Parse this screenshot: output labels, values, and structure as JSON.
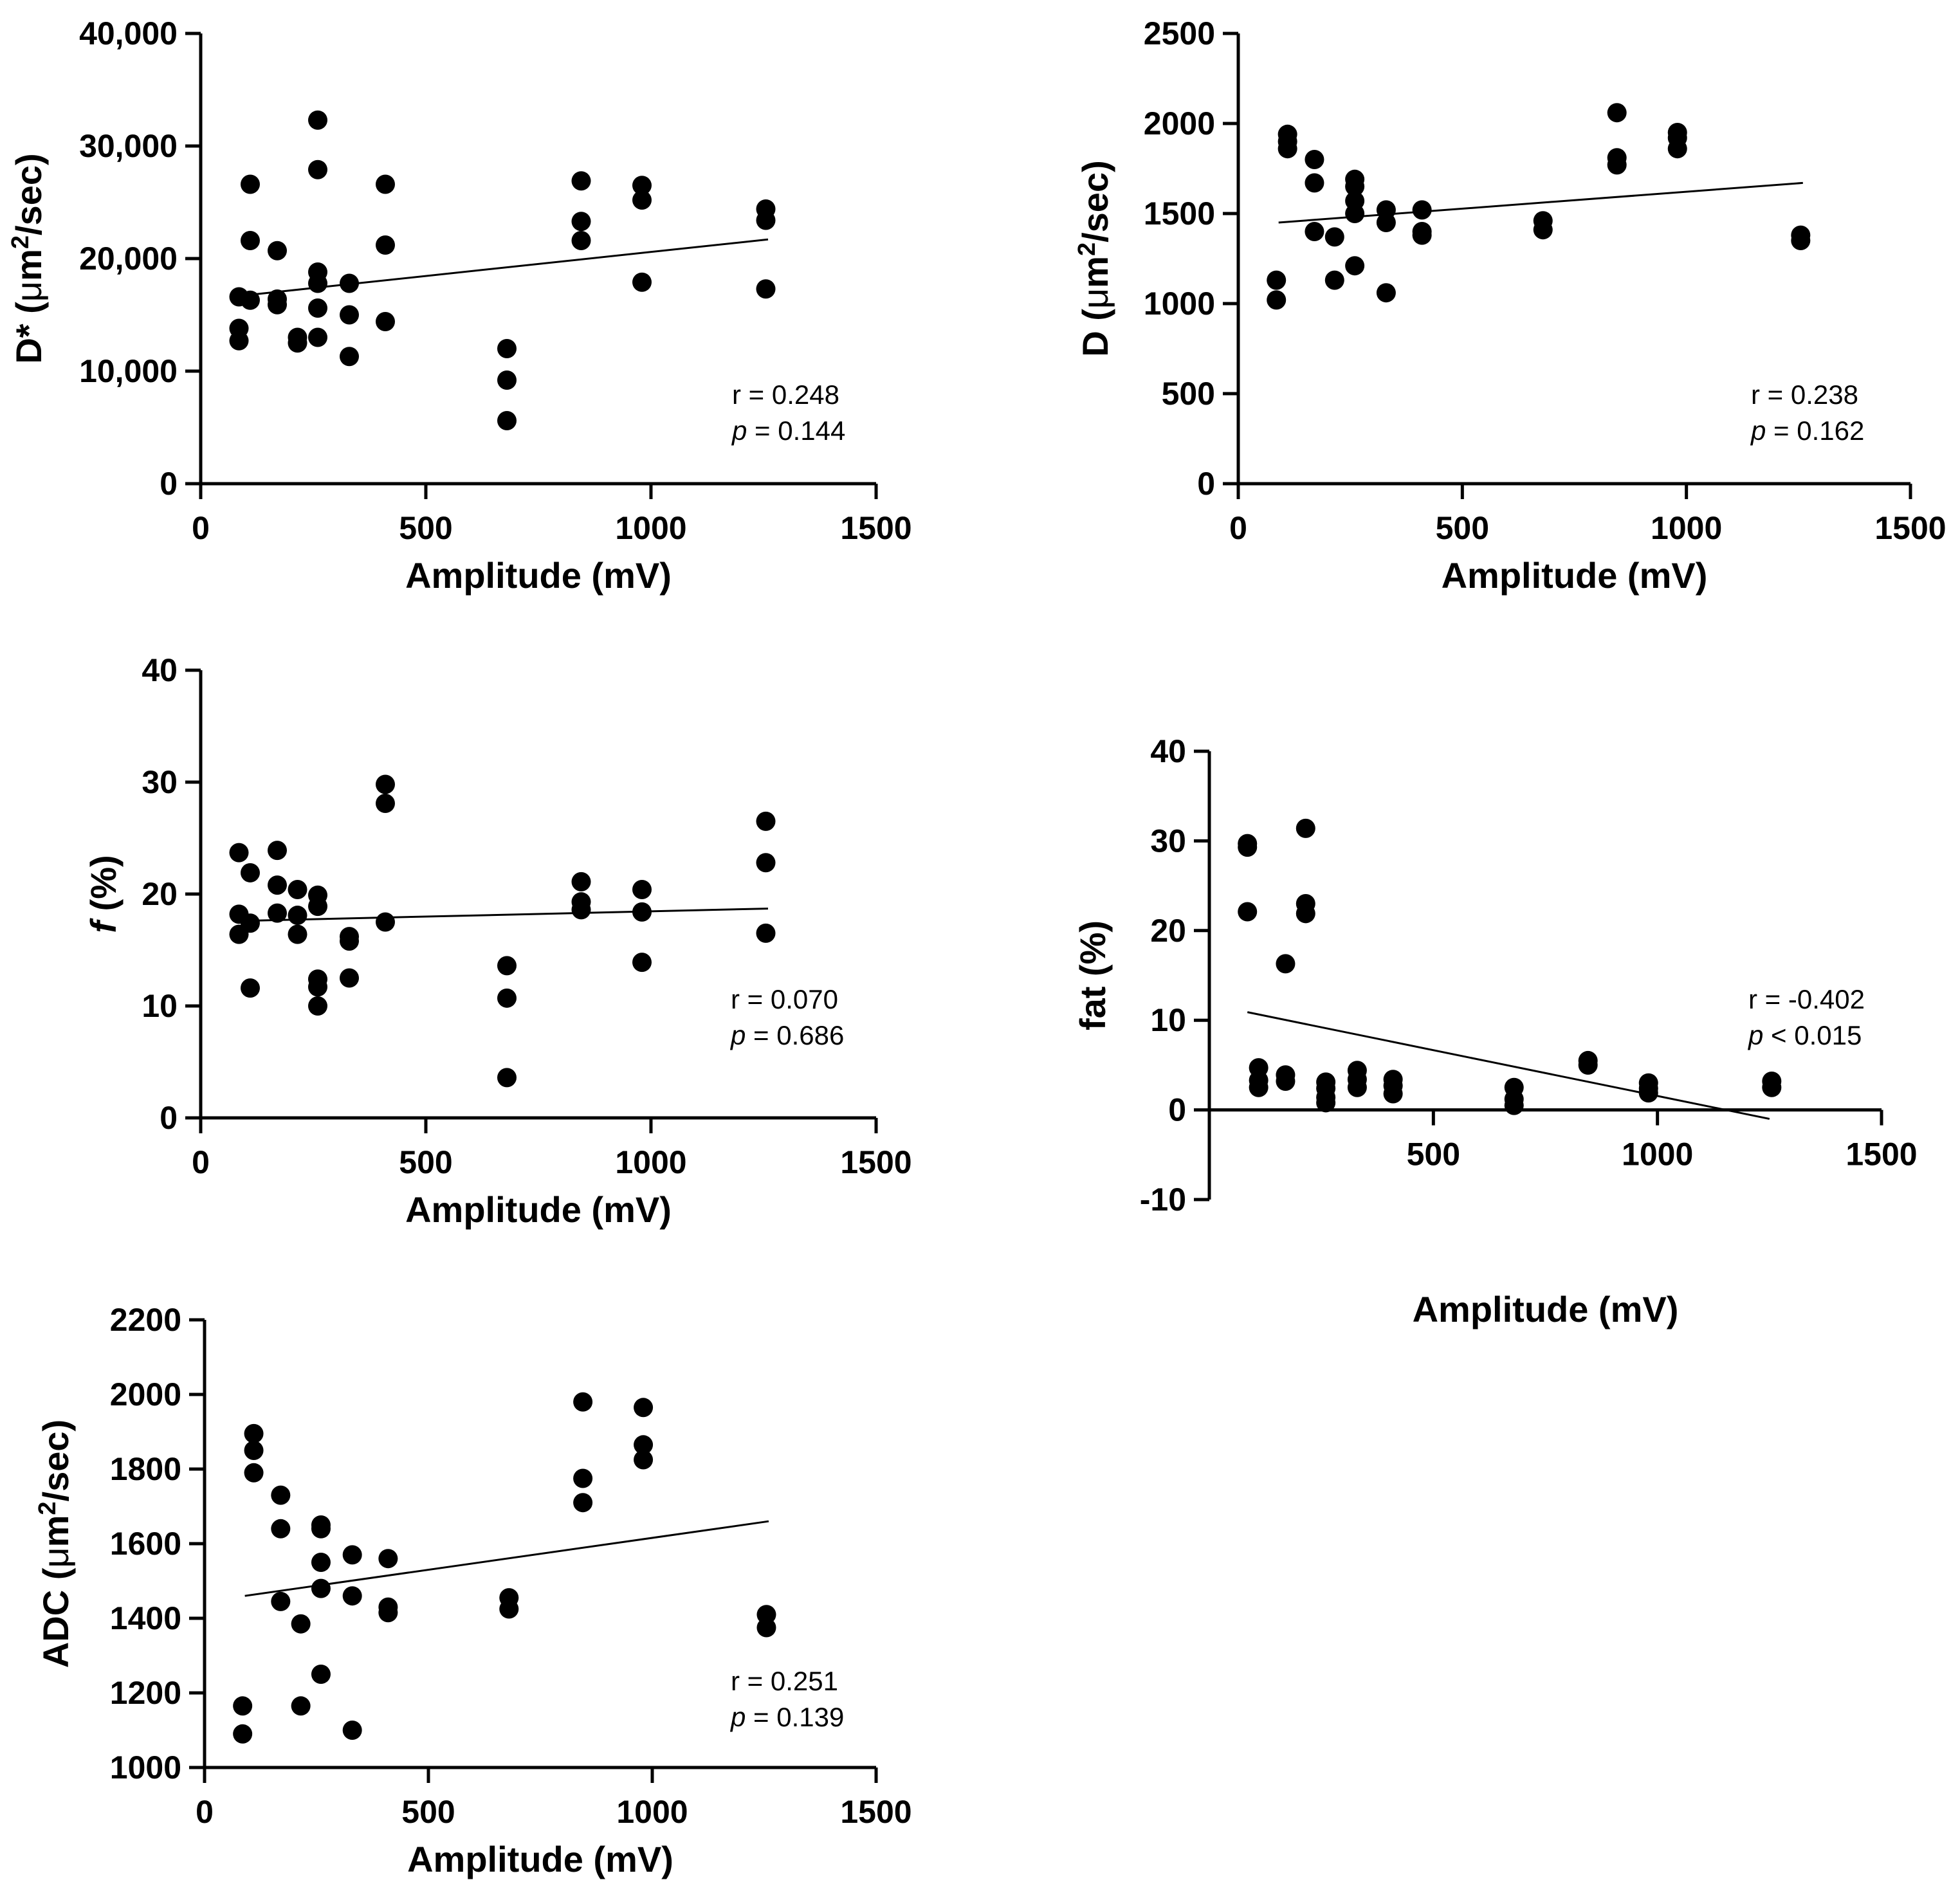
{
  "colors": {
    "ink": "#000000",
    "background": "#ffffff"
  },
  "chart_data": [
    {
      "id": "dstar",
      "type": "scatter",
      "title": "",
      "xlabel": "Amplitude (mV)",
      "ylabel_prefix": "D* (",
      "ylabel_mu": "μ",
      "ylabel_unit": "m",
      "ylabel_sup": "2",
      "ylabel_suffix": "/sec)",
      "xlim": [
        0,
        1500
      ],
      "ylim": [
        0,
        40000
      ],
      "xticks": [
        0,
        500,
        1000,
        1500
      ],
      "xtick_labels": [
        "0",
        "500",
        "1000",
        "1500"
      ],
      "yticks": [
        0,
        10000,
        20000,
        30000,
        40000
      ],
      "ytick_labels": [
        "0",
        "10,000",
        "20,000",
        "30,000",
        "40,000"
      ],
      "stats": {
        "r_text": "r = 0.248",
        "p_symbol": "p",
        "p_text": " = 0.144"
      },
      "fit": {
        "x": [
          90,
          1260
        ],
        "y": [
          16700,
          21700
        ]
      },
      "points": [
        [
          85,
          16600
        ],
        [
          85,
          13800
        ],
        [
          85,
          12700
        ],
        [
          110,
          26600
        ],
        [
          110,
          21600
        ],
        [
          110,
          16300
        ],
        [
          170,
          20700
        ],
        [
          170,
          16400
        ],
        [
          170,
          15900
        ],
        [
          215,
          13000
        ],
        [
          215,
          12500
        ],
        [
          260,
          32300
        ],
        [
          260,
          27900
        ],
        [
          260,
          18800
        ],
        [
          260,
          17800
        ],
        [
          260,
          15600
        ],
        [
          260,
          13000
        ],
        [
          330,
          17800
        ],
        [
          330,
          15000
        ],
        [
          330,
          11300
        ],
        [
          410,
          26600
        ],
        [
          410,
          21200
        ],
        [
          410,
          14400
        ],
        [
          680,
          12000
        ],
        [
          680,
          9200
        ],
        [
          680,
          5600
        ],
        [
          845,
          26900
        ],
        [
          845,
          23300
        ],
        [
          845,
          21600
        ],
        [
          980,
          26500
        ],
        [
          980,
          25200
        ],
        [
          980,
          17900
        ],
        [
          1255,
          24400
        ],
        [
          1255,
          23400
        ],
        [
          1255,
          17300
        ]
      ]
    },
    {
      "id": "d",
      "type": "scatter",
      "title": "",
      "xlabel": "Amplitude (mV)",
      "ylabel_prefix": "D (",
      "ylabel_mu": "μ",
      "ylabel_unit": "m",
      "ylabel_sup": "2",
      "ylabel_suffix": "/sec)",
      "xlim": [
        0,
        1500
      ],
      "ylim": [
        0,
        2500
      ],
      "xticks": [
        0,
        500,
        1000,
        1500
      ],
      "xtick_labels": [
        "0",
        "500",
        "1000",
        "1500"
      ],
      "yticks": [
        0,
        500,
        1000,
        1500,
        2000,
        2500
      ],
      "ytick_labels": [
        "0",
        "500",
        "1000",
        "1500",
        "2000",
        "2500"
      ],
      "stats": {
        "r_text": "r = 0.238",
        "p_symbol": "p",
        "p_text": " = 0.162"
      },
      "fit": {
        "x": [
          90,
          1260
        ],
        "y": [
          1450,
          1670
        ]
      },
      "points": [
        [
          85,
          1130
        ],
        [
          85,
          1020
        ],
        [
          110,
          1940
        ],
        [
          110,
          1900
        ],
        [
          110,
          1860
        ],
        [
          170,
          1800
        ],
        [
          170,
          1670
        ],
        [
          170,
          1400
        ],
        [
          215,
          1370
        ],
        [
          215,
          1130
        ],
        [
          260,
          1690
        ],
        [
          260,
          1650
        ],
        [
          260,
          1570
        ],
        [
          260,
          1500
        ],
        [
          260,
          1210
        ],
        [
          330,
          1520
        ],
        [
          330,
          1450
        ],
        [
          330,
          1060
        ],
        [
          410,
          1520
        ],
        [
          410,
          1400
        ],
        [
          410,
          1380
        ],
        [
          680,
          1460
        ],
        [
          680,
          1410
        ],
        [
          845,
          2060
        ],
        [
          845,
          1810
        ],
        [
          845,
          1770
        ],
        [
          980,
          1950
        ],
        [
          980,
          1920
        ],
        [
          980,
          1860
        ],
        [
          1255,
          1380
        ],
        [
          1255,
          1350
        ]
      ]
    },
    {
      "id": "f",
      "type": "scatter",
      "title": "",
      "xlabel": "Amplitude (mV)",
      "ylabel_italic": "f",
      "ylabel_suffix": " (%)",
      "xlim": [
        0,
        1500
      ],
      "ylim": [
        0,
        40
      ],
      "xticks": [
        0,
        500,
        1000,
        1500
      ],
      "xtick_labels": [
        "0",
        "500",
        "1000",
        "1500"
      ],
      "yticks": [
        0,
        10,
        20,
        30,
        40
      ],
      "ytick_labels": [
        "0",
        "10",
        "20",
        "30",
        "40"
      ],
      "stats": {
        "r_text": "r = 0.070",
        "p_symbol": "p",
        "p_text": " = 0.686"
      },
      "fit": {
        "x": [
          90,
          1260
        ],
        "y": [
          17.6,
          18.7
        ]
      },
      "points": [
        [
          85,
          23.7
        ],
        [
          85,
          18.2
        ],
        [
          85,
          16.4
        ],
        [
          110,
          21.9
        ],
        [
          110,
          17.4
        ],
        [
          110,
          11.6
        ],
        [
          170,
          23.9
        ],
        [
          170,
          20.8
        ],
        [
          170,
          18.3
        ],
        [
          215,
          20.4
        ],
        [
          215,
          18.1
        ],
        [
          215,
          16.4
        ],
        [
          260,
          19.9
        ],
        [
          260,
          18.9
        ],
        [
          260,
          12.4
        ],
        [
          260,
          11.7
        ],
        [
          260,
          10.0
        ],
        [
          330,
          16.2
        ],
        [
          330,
          15.8
        ],
        [
          330,
          12.5
        ],
        [
          410,
          29.8
        ],
        [
          410,
          28.1
        ],
        [
          410,
          17.5
        ],
        [
          680,
          13.6
        ],
        [
          680,
          10.7
        ],
        [
          680,
          3.6
        ],
        [
          845,
          21.1
        ],
        [
          845,
          19.3
        ],
        [
          845,
          18.6
        ],
        [
          980,
          20.4
        ],
        [
          980,
          18.4
        ],
        [
          980,
          13.9
        ],
        [
          1255,
          26.5
        ],
        [
          1255,
          22.8
        ],
        [
          1255,
          16.5
        ]
      ]
    },
    {
      "id": "fat",
      "type": "scatter",
      "title": "",
      "xlabel": "Amplitude (mV)",
      "ylabel_plain": "fat (%)",
      "xlim": [
        0,
        1500
      ],
      "ylim": [
        -10,
        40
      ],
      "xticks": [
        500,
        1000,
        1500
      ],
      "xtick_labels": [
        "500",
        "1000",
        "1500"
      ],
      "yticks": [
        -10,
        0,
        10,
        20,
        30,
        40
      ],
      "ytick_labels": [
        "-10",
        "0",
        "10",
        "20",
        "30",
        "40"
      ],
      "stats": {
        "r_text": "r = -0.402",
        "p_symbol": "p",
        "p_text": " < 0.015"
      },
      "fit": {
        "x": [
          85,
          1250
        ],
        "y": [
          10.9,
          -1.0
        ]
      },
      "points": [
        [
          85,
          29.7
        ],
        [
          85,
          29.3
        ],
        [
          85,
          22.1
        ],
        [
          110,
          4.7
        ],
        [
          110,
          3.3
        ],
        [
          110,
          2.5
        ],
        [
          170,
          16.3
        ],
        [
          170,
          3.9
        ],
        [
          170,
          3.2
        ],
        [
          215,
          31.4
        ],
        [
          215,
          23.0
        ],
        [
          215,
          21.9
        ],
        [
          260,
          3.1
        ],
        [
          260,
          2.4
        ],
        [
          260,
          1.4
        ],
        [
          260,
          0.8
        ],
        [
          330,
          4.4
        ],
        [
          330,
          3.4
        ],
        [
          330,
          2.5
        ],
        [
          410,
          3.4
        ],
        [
          410,
          2.7
        ],
        [
          410,
          1.8
        ],
        [
          680,
          2.5
        ],
        [
          680,
          1.2
        ],
        [
          680,
          0.5
        ],
        [
          845,
          5.5
        ],
        [
          845,
          5.0
        ],
        [
          980,
          3.0
        ],
        [
          980,
          2.4
        ],
        [
          980,
          1.9
        ],
        [
          1255,
          3.2
        ],
        [
          1255,
          2.5
        ]
      ]
    },
    {
      "id": "adc",
      "type": "scatter",
      "title": "",
      "xlabel": "Amplitude (mV)",
      "ylabel_prefix": "ADC (",
      "ylabel_mu": "μ",
      "ylabel_unit": "m",
      "ylabel_sup": "2",
      "ylabel_suffix": "/sec)",
      "xlim": [
        0,
        1500
      ],
      "ylim": [
        1000,
        2200
      ],
      "xticks": [
        0,
        500,
        1000,
        1500
      ],
      "xtick_labels": [
        "0",
        "500",
        "1000",
        "1500"
      ],
      "yticks": [
        1000,
        1200,
        1400,
        1600,
        1800,
        2000,
        2200
      ],
      "ytick_labels": [
        "1000",
        "1200",
        "1400",
        "1600",
        "1800",
        "2000",
        "2200"
      ],
      "stats": {
        "r_text": "r = 0.251",
        "p_symbol": "p",
        "p_text": " = 0.139"
      },
      "fit": {
        "x": [
          90,
          1260
        ],
        "y": [
          1460,
          1660
        ]
      },
      "points": [
        [
          85,
          1165
        ],
        [
          85,
          1090
        ],
        [
          110,
          1895
        ],
        [
          110,
          1850
        ],
        [
          110,
          1790
        ],
        [
          170,
          1730
        ],
        [
          170,
          1640
        ],
        [
          170,
          1445
        ],
        [
          215,
          1385
        ],
        [
          215,
          1165
        ],
        [
          260,
          1650
        ],
        [
          260,
          1640
        ],
        [
          260,
          1550
        ],
        [
          260,
          1480
        ],
        [
          260,
          1250
        ],
        [
          330,
          1570
        ],
        [
          330,
          1460
        ],
        [
          330,
          1100
        ],
        [
          410,
          1560
        ],
        [
          410,
          1430
        ],
        [
          410,
          1415
        ],
        [
          680,
          1455
        ],
        [
          680,
          1425
        ],
        [
          845,
          1980
        ],
        [
          845,
          1775
        ],
        [
          845,
          1710
        ],
        [
          980,
          1965
        ],
        [
          980,
          1865
        ],
        [
          980,
          1825
        ],
        [
          1255,
          1410
        ],
        [
          1255,
          1375
        ]
      ]
    }
  ]
}
